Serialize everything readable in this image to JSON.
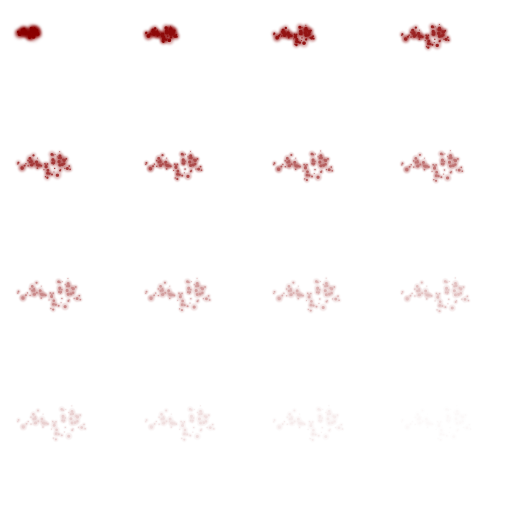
{
  "sprite_sheet": {
    "grid": {
      "columns": 4,
      "rows": 4
    },
    "particle_color": "#8b0000",
    "frames": [
      {
        "index": 1,
        "spread": 0.3,
        "opacity": 1.0,
        "blur": 1.6
      },
      {
        "index": 2,
        "spread": 0.45,
        "opacity": 0.96,
        "blur": 1.4
      },
      {
        "index": 3,
        "spread": 0.58,
        "opacity": 0.92,
        "blur": 1.2
      },
      {
        "index": 4,
        "spread": 0.68,
        "opacity": 0.86,
        "blur": 1.1
      },
      {
        "index": 5,
        "spread": 0.76,
        "opacity": 0.78,
        "blur": 1.0
      },
      {
        "index": 6,
        "spread": 0.81,
        "opacity": 0.7,
        "blur": 0.9
      },
      {
        "index": 7,
        "spread": 0.85,
        "opacity": 0.62,
        "blur": 0.9
      },
      {
        "index": 8,
        "spread": 0.88,
        "opacity": 0.54,
        "blur": 0.8
      },
      {
        "index": 9,
        "spread": 0.91,
        "opacity": 0.46,
        "blur": 0.8
      },
      {
        "index": 10,
        "spread": 0.93,
        "opacity": 0.38,
        "blur": 0.7
      },
      {
        "index": 11,
        "spread": 0.95,
        "opacity": 0.3,
        "blur": 0.7
      },
      {
        "index": 12,
        "spread": 0.97,
        "opacity": 0.24,
        "blur": 0.6
      },
      {
        "index": 13,
        "spread": 0.98,
        "opacity": 0.18,
        "blur": 0.6
      },
      {
        "index": 14,
        "spread": 0.99,
        "opacity": 0.12,
        "blur": 0.5
      },
      {
        "index": 15,
        "spread": 1.0,
        "opacity": 0.07,
        "blur": 0.5
      },
      {
        "index": 16,
        "spread": 1.0,
        "opacity": 0.02,
        "blur": 0.5
      }
    ]
  }
}
